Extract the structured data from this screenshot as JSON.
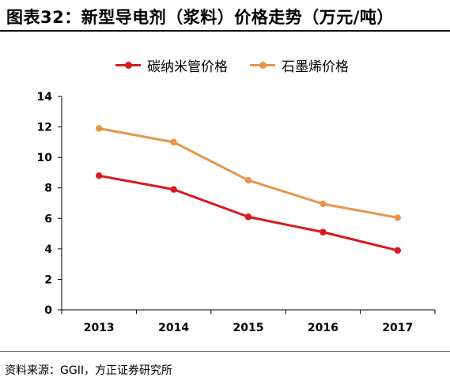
{
  "header": {
    "title": "图表32：新型导电剂（浆料）价格走势（万元/吨）"
  },
  "footer": {
    "source": "资料来源：GGII，方正证券研究所"
  },
  "colors": {
    "series_carbon": "#d71920",
    "series_graphene": "#e8944a",
    "axis": "#000000"
  },
  "chart_data": {
    "type": "line",
    "title": "新型导电剂（浆料）价格走势（万元/吨）",
    "x": [
      "2013",
      "2014",
      "2015",
      "2016",
      "2017"
    ],
    "ylim": [
      0,
      14
    ],
    "yticks": [
      0,
      2,
      4,
      6,
      8,
      10,
      12,
      14
    ],
    "grid": false,
    "legend_position": "top",
    "series": [
      {
        "name": "碳纳米管价格",
        "values": [
          8.8,
          7.9,
          6.1,
          5.1,
          3.9
        ],
        "color": "#d71920"
      },
      {
        "name": "石墨烯价格",
        "values": [
          11.9,
          11.0,
          8.5,
          6.95,
          6.05
        ],
        "color": "#e8944a"
      }
    ]
  }
}
